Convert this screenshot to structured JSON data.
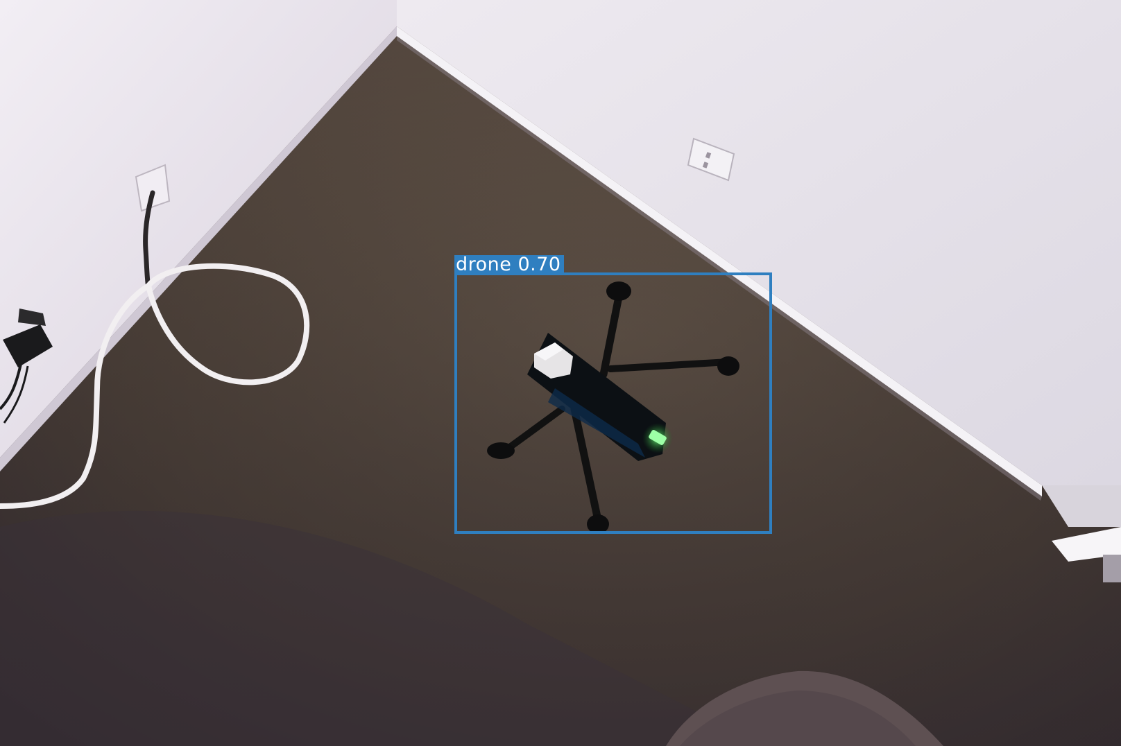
{
  "detection": {
    "class_label": "drone",
    "confidence": "0.70",
    "label_text": "drone 0.70",
    "box_color": "#2f7fc0",
    "label_text_color": "#ffffff"
  },
  "scene": {
    "wall_color": "#e9e3ec",
    "carpet_color": "#5b4d42"
  }
}
